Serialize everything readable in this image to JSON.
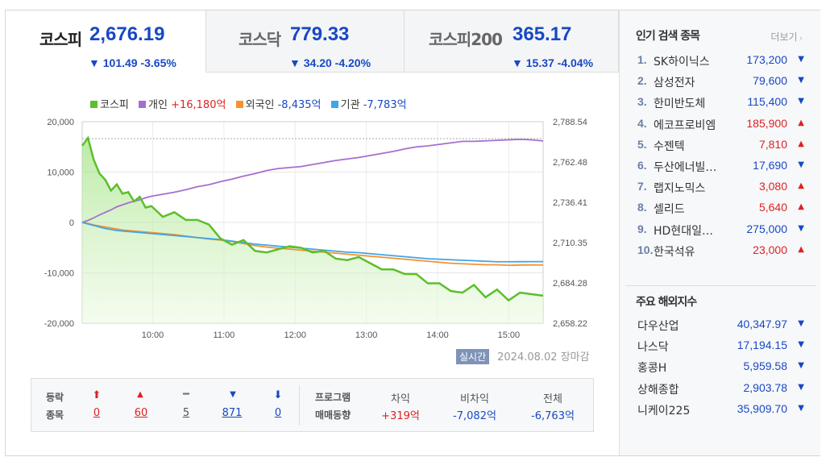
{
  "tabs": [
    {
      "name": "코스피",
      "value": "2,676.19",
      "change": "▼ 101.49 -3.65%"
    },
    {
      "name": "코스닥",
      "value": "779.33",
      "change": "▼ 34.20 -4.20%"
    },
    {
      "name": "코스피200",
      "value": "365.17",
      "change": "▼ 15.37 -4.04%"
    }
  ],
  "legend": [
    {
      "name": "코스피",
      "value": "",
      "color": "#5cbf2a"
    },
    {
      "name": "개인",
      "value": "+16,180억",
      "color": "#a56fd0",
      "value_color": "#d22"
    },
    {
      "name": "외국인",
      "value": "-8,435억",
      "color": "#f5922e",
      "value_color": "#1848c4"
    },
    {
      "name": "기관",
      "value": "-7,783억",
      "color": "#3ea6e8",
      "value_color": "#1848c4"
    }
  ],
  "chart_data": {
    "type": "line",
    "x_ticks": [
      "10:00",
      "11:00",
      "12:00",
      "13:00",
      "14:00",
      "15:00"
    ],
    "y_left_ticks": [
      "20,000",
      "10,000",
      "0",
      "-10,000",
      "-20,000"
    ],
    "y_right_ticks": [
      "2,788.54",
      "2,762.48",
      "2,736.41",
      "2,710.35",
      "2,684.28",
      "2,658.22"
    ],
    "ylim_left": [
      -20000,
      20000
    ],
    "ylim_right": [
      2658.22,
      2788.54
    ],
    "grid": true,
    "x": [
      0,
      5,
      10,
      15,
      20,
      25,
      30,
      35,
      40,
      45,
      50,
      55,
      60,
      70,
      80,
      90,
      100,
      110,
      120,
      130,
      140,
      150,
      160,
      170,
      180,
      190,
      200,
      210,
      220,
      230,
      240,
      250,
      260,
      270,
      280,
      290,
      300,
      310,
      320,
      330,
      340,
      350,
      360,
      370,
      380,
      390,
      400
    ],
    "series": [
      {
        "name": "코스피",
        "axis": "right",
        "values": [
          2773,
          2778,
          2764,
          2755,
          2751,
          2744,
          2748,
          2742,
          2743,
          2737,
          2740,
          2733,
          2734,
          2727,
          2730,
          2725,
          2725,
          2722,
          2713,
          2709,
          2712,
          2705,
          2704,
          2706,
          2708,
          2707,
          2704,
          2705,
          2700,
          2699,
          2701,
          2697,
          2693,
          2693,
          2690,
          2690,
          2684,
          2684,
          2679,
          2678,
          2683,
          2675,
          2680,
          2673,
          2678,
          2677,
          2676
        ]
      },
      {
        "name": "개인",
        "axis": "left",
        "values": [
          0,
          400,
          900,
          1500,
          2000,
          2500,
          3100,
          3500,
          3900,
          4200,
          4500,
          4900,
          5200,
          5600,
          6000,
          6500,
          7100,
          7500,
          8100,
          8600,
          9200,
          9700,
          10300,
          10700,
          10900,
          11100,
          11500,
          11900,
          12300,
          12600,
          12900,
          13300,
          13700,
          14100,
          14600,
          15000,
          15200,
          15500,
          15800,
          16100,
          16100,
          16200,
          16300,
          16400,
          16500,
          16400,
          16180
        ]
      },
      {
        "name": "외국인",
        "axis": "left",
        "values": [
          0,
          -200,
          -500,
          -700,
          -900,
          -1100,
          -1300,
          -1500,
          -1600,
          -1700,
          -1800,
          -1900,
          -2000,
          -2200,
          -2400,
          -2700,
          -3000,
          -3300,
          -3500,
          -3800,
          -4200,
          -4600,
          -4900,
          -5100,
          -5300,
          -5500,
          -5700,
          -5900,
          -6100,
          -6300,
          -6500,
          -6700,
          -6900,
          -7100,
          -7300,
          -7500,
          -7700,
          -7900,
          -8100,
          -8200,
          -8300,
          -8400,
          -8400,
          -8500,
          -8450,
          -8430,
          -8435
        ]
      },
      {
        "name": "기관",
        "axis": "left",
        "values": [
          0,
          -300,
          -600,
          -900,
          -1200,
          -1400,
          -1600,
          -1700,
          -1800,
          -1900,
          -2000,
          -2100,
          -2200,
          -2400,
          -2600,
          -2800,
          -3000,
          -3200,
          -3400,
          -3700,
          -4000,
          -4300,
          -4500,
          -4700,
          -4900,
          -5100,
          -5300,
          -5500,
          -5700,
          -5900,
          -6000,
          -6200,
          -6400,
          -6600,
          -6800,
          -7000,
          -7200,
          -7300,
          -7400,
          -7500,
          -7600,
          -7700,
          -7800,
          -7800,
          -7790,
          -7785,
          -7783
        ]
      }
    ]
  },
  "stamp": {
    "realtime": "실시간",
    "date": "2024.08.02",
    "status": "장마감"
  },
  "updown": {
    "label1": "등락",
    "label2": "종목",
    "items": [
      {
        "symbol": "⬆",
        "count": "0",
        "color": "#d22"
      },
      {
        "symbol": "▲",
        "count": "60",
        "color": "#d22"
      },
      {
        "symbol": "━",
        "count": "5",
        "color": "#777"
      },
      {
        "symbol": "▼",
        "count": "871",
        "color": "#1848c4"
      },
      {
        "symbol": "⬇",
        "count": "0",
        "color": "#1848c4"
      }
    ]
  },
  "program": {
    "label1": "프로그램",
    "label2": "매매동향",
    "items": [
      {
        "name": "차익",
        "value": "+319억",
        "color": "#d22"
      },
      {
        "name": "비차익",
        "value": "-7,082억",
        "color": "#1848c4"
      },
      {
        "name": "전체",
        "value": "-6,763억",
        "color": "#1848c4"
      }
    ]
  },
  "popular": {
    "title": "인기 검색 종목",
    "more": "더보기",
    "items": [
      {
        "rank": "1.",
        "name": "SK하이닉스",
        "price": "173,200",
        "dir": "down"
      },
      {
        "rank": "2.",
        "name": "삼성전자",
        "price": "79,600",
        "dir": "down"
      },
      {
        "rank": "3.",
        "name": "한미반도체",
        "price": "115,400",
        "dir": "down"
      },
      {
        "rank": "4.",
        "name": "에코프로비엠",
        "price": "185,900",
        "dir": "up"
      },
      {
        "rank": "5.",
        "name": "수젠텍",
        "price": "7,810",
        "dir": "up"
      },
      {
        "rank": "6.",
        "name": "두산에너빌리티",
        "price": "17,690",
        "dir": "down"
      },
      {
        "rank": "7.",
        "name": "랩지노믹스",
        "price": "3,080",
        "dir": "up"
      },
      {
        "rank": "8.",
        "name": "셀리드",
        "price": "5,640",
        "dir": "up"
      },
      {
        "rank": "9.",
        "name": "HD현대일렉트릭",
        "price": "275,000",
        "dir": "down"
      },
      {
        "rank": "10.",
        "name": "한국석유",
        "price": "23,000",
        "dir": "up"
      }
    ]
  },
  "overseas": {
    "title": "주요 해외지수",
    "items": [
      {
        "name": "다우산업",
        "value": "40,347.97"
      },
      {
        "name": "나스닥",
        "value": "17,194.15"
      },
      {
        "name": "홍콩H",
        "value": "5,959.58"
      },
      {
        "name": "상해종합",
        "value": "2,903.78"
      },
      {
        "name": "니케이225",
        "value": "35,909.70"
      }
    ]
  }
}
